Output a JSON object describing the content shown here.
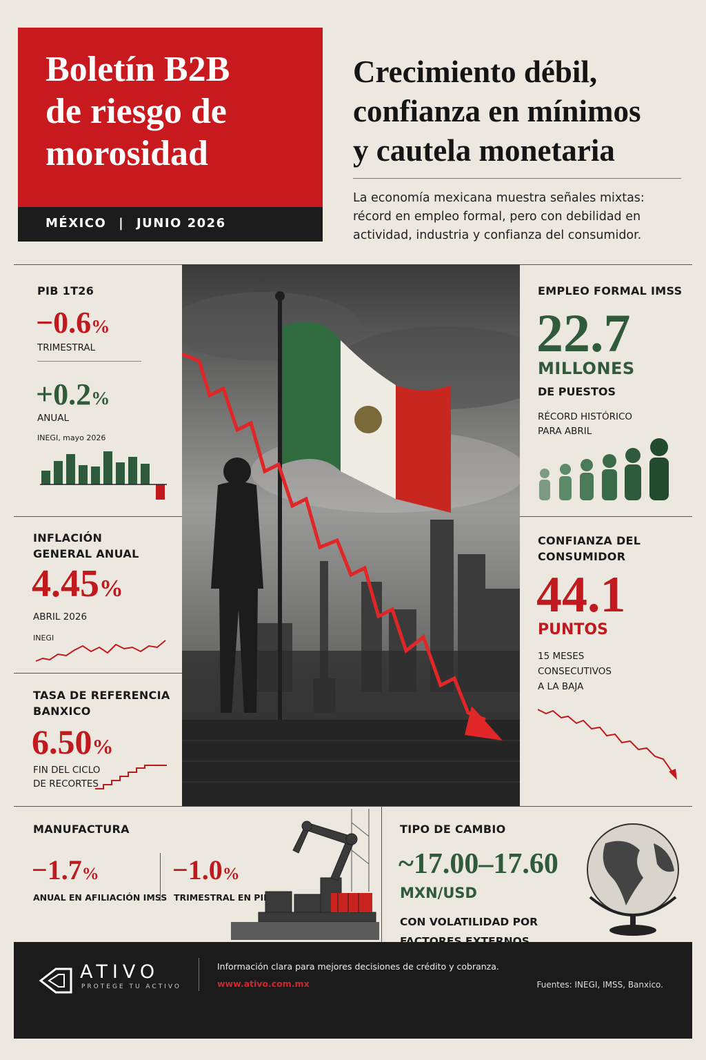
{
  "header": {
    "title_lines": [
      "Boletín B2B",
      "de riesgo de",
      "morosidad"
    ],
    "location": "MÉXICO",
    "date": "JUNIO 2026",
    "headline_lines": [
      "Crecimiento débil,",
      "confianza en mínimos",
      "y cautela monetaria"
    ],
    "summary_lines": [
      "La economía mexicana muestra señales mixtas:",
      "récord en empleo formal, pero con debilidad en",
      "actividad, industria y confianza del consumidor."
    ]
  },
  "pib": {
    "label": "PIB 1T26",
    "quarterly": {
      "value": "−0.6",
      "unit": "%",
      "caption": "TRIMESTRAL"
    },
    "annual": {
      "value": "+0.2",
      "unit": "%",
      "caption": "ANUAL"
    },
    "source": "INEGI, mayo 2026"
  },
  "inflation": {
    "label_lines": [
      "INFLACIÓN",
      "GENERAL ANUAL"
    ],
    "value": "4.45",
    "unit": "%",
    "caption": "ABRIL 2026",
    "source": "INEGI"
  },
  "rate": {
    "label_lines": [
      "TASA DE REFERENCIA",
      "BANXICO"
    ],
    "value": "6.50",
    "unit": "%",
    "caption_lines": [
      "FIN DEL CICLO",
      "DE RECORTES"
    ]
  },
  "employment": {
    "label": "EMPLEO FORMAL IMSS",
    "value": "22.7",
    "unit": "MILLONES",
    "caption": "DE PUESTOS",
    "note_lines": [
      "RÉCORD HISTÓRICO",
      "PARA ABRIL"
    ]
  },
  "confidence": {
    "label_lines": [
      "CONFIANZA DEL",
      "CONSUMIDOR"
    ],
    "value": "44.1",
    "unit": "PUNTOS",
    "note_lines": [
      "15 MESES",
      "CONSECUTIVOS",
      "A LA BAJA"
    ]
  },
  "manufacturing": {
    "label": "MANUFACTURA",
    "items": [
      {
        "value": "−1.7",
        "unit": "%",
        "caption": "ANUAL EN AFILIACIÓN IMSS"
      },
      {
        "value": "−1.0",
        "unit": "%",
        "caption": "TRIMESTRAL EN PIB"
      }
    ]
  },
  "exchange_rate": {
    "label": "TIPO DE CAMBIO",
    "value": "~17.00–17.60",
    "unit": "MXN/USD",
    "note_lines": [
      "CON VOLATILIDAD POR",
      "FACTORES EXTERNOS"
    ]
  },
  "footer": {
    "brand": "ATIVO",
    "tagline": "PROTEGE TU ACTIVO",
    "message": "Información clara para mejores decisiones de crédito y cobranza.",
    "url": "www.ativo.com.mx",
    "sources": "Fuentes: INEGI, IMSS, Banxico."
  }
}
